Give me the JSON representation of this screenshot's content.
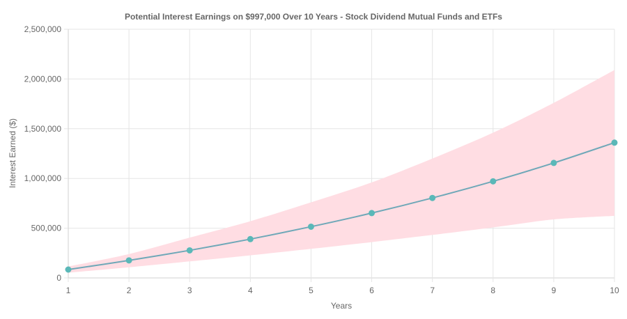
{
  "chart_data": {
    "type": "line",
    "title": "Potential Interest Earnings on $997,000 Over 10 Years - Stock Dividend Mutual Funds and ETFs",
    "xlabel": "Years",
    "ylabel": "Interest Earned ($)",
    "x": [
      1,
      2,
      3,
      4,
      5,
      6,
      7,
      8,
      9,
      10
    ],
    "ylim": [
      0,
      2500000
    ],
    "y_ticks": [
      0,
      500000,
      1000000,
      1500000,
      2000000,
      2500000
    ],
    "y_tick_labels": [
      "0",
      "500,000",
      "1,000,000",
      "1,500,000",
      "2,000,000",
      "2,500,000"
    ],
    "x_tick_labels": [
      "1",
      "2",
      "3",
      "4",
      "5",
      "6",
      "7",
      "8",
      "9",
      "10"
    ],
    "grid": true,
    "series": [
      {
        "values": [
          84000,
          176000,
          277000,
          390000,
          515000,
          652000,
          804000,
          971000,
          1156000,
          1360000
        ],
        "color": "#6fa8b8",
        "marker_color": "#5ab8b8"
      }
    ],
    "band": {
      "lower": [
        52000,
        107000,
        166000,
        227000,
        292000,
        360000,
        432000,
        508000,
        588000,
        624000
      ],
      "upper": [
        115000,
        240000,
        405000,
        570000,
        760000,
        960000,
        1200000,
        1460000,
        1760000,
        2090000
      ],
      "color": "#ffdde3"
    }
  }
}
